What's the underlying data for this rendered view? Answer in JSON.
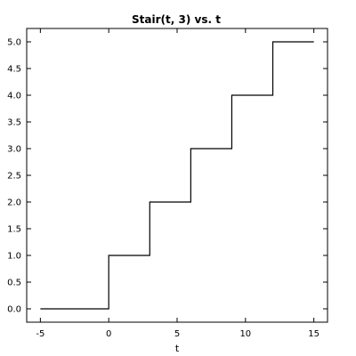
{
  "chart_data": {
    "type": "line",
    "title": "Stair(t, 3) vs. t",
    "xlabel": "t",
    "ylabel": "",
    "xlim": [
      -6,
      16
    ],
    "ylim": [
      -0.25,
      5.25
    ],
    "grid": false,
    "legend": "none",
    "line_color": "#000000",
    "xticks": [
      -5,
      0,
      5,
      10,
      15
    ],
    "xtick_labels": [
      "-5",
      "0",
      "5",
      "10",
      "15"
    ],
    "yticks": [
      0.0,
      0.5,
      1.0,
      1.5,
      2.0,
      2.5,
      3.0,
      3.5,
      4.0,
      4.5,
      5.0
    ],
    "ytick_labels": [
      "0.0",
      "0.5",
      "1.0",
      "1.5",
      "2.0",
      "2.5",
      "3.0",
      "3.5",
      "4.0",
      "4.5",
      "5.0"
    ],
    "series": [
      {
        "x": [
          -5,
          0,
          0,
          3,
          3,
          6,
          6,
          9,
          9,
          12,
          12,
          15
        ],
        "y": [
          0,
          0,
          1,
          1,
          2,
          2,
          3,
          3,
          4,
          4,
          5,
          5
        ]
      }
    ]
  }
}
